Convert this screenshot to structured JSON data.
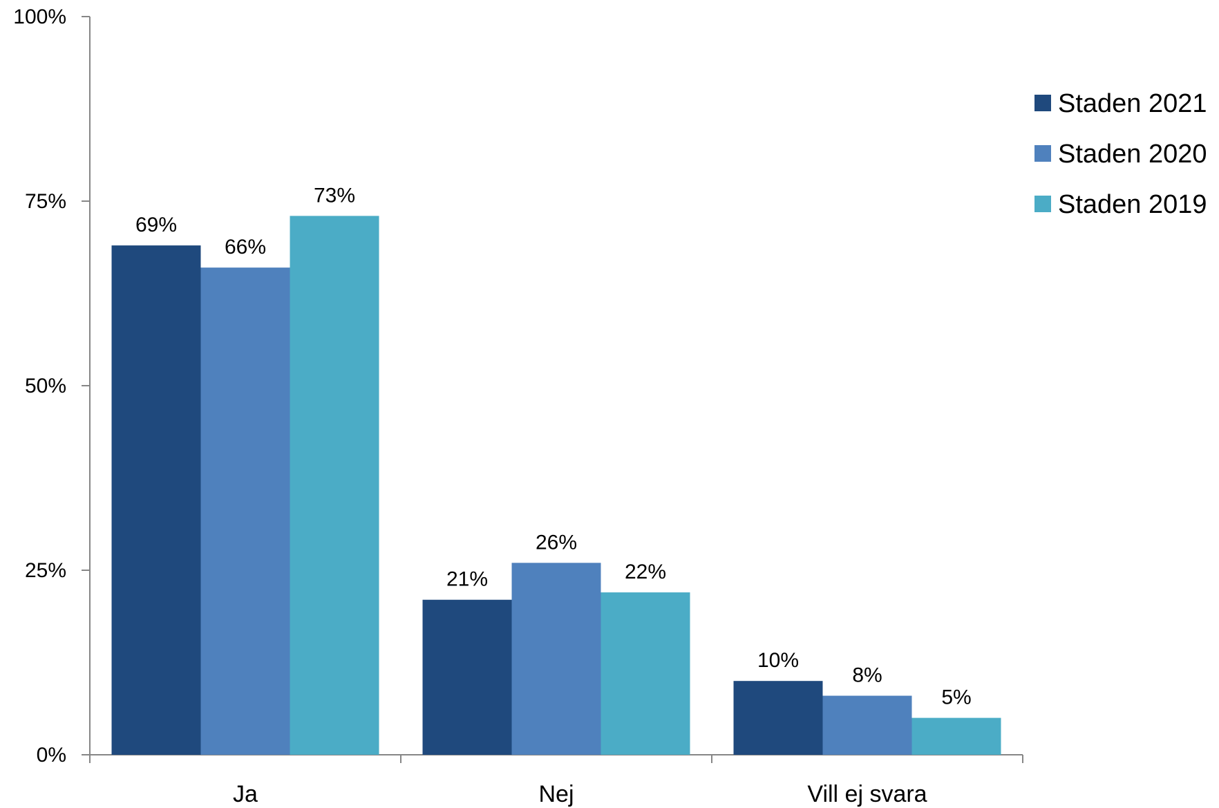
{
  "chart_data": {
    "type": "bar",
    "title": "",
    "xlabel": "",
    "ylabel": "",
    "ylim": [
      0,
      100
    ],
    "yticks": [
      0,
      25,
      50,
      75,
      100
    ],
    "ytick_labels": [
      "0%",
      "25%",
      "50%",
      "75%",
      "100%"
    ],
    "categories": [
      "Ja",
      "Nej",
      "Vill ej svara"
    ],
    "series": [
      {
        "name": "Staden 2021",
        "color": "#1F497D",
        "values": [
          69,
          21,
          10
        ],
        "labels": [
          "69%",
          "21%",
          "10%"
        ]
      },
      {
        "name": "Staden 2020",
        "color": "#4F81BD",
        "values": [
          66,
          26,
          8
        ],
        "labels": [
          "66%",
          "26%",
          "8%"
        ]
      },
      {
        "name": "Staden 2019",
        "color": "#4BACC6",
        "values": [
          73,
          22,
          5
        ],
        "labels": [
          "73%",
          "22%",
          "5%"
        ]
      }
    ],
    "grid": false,
    "legend_position": "right",
    "data_labels": true
  }
}
